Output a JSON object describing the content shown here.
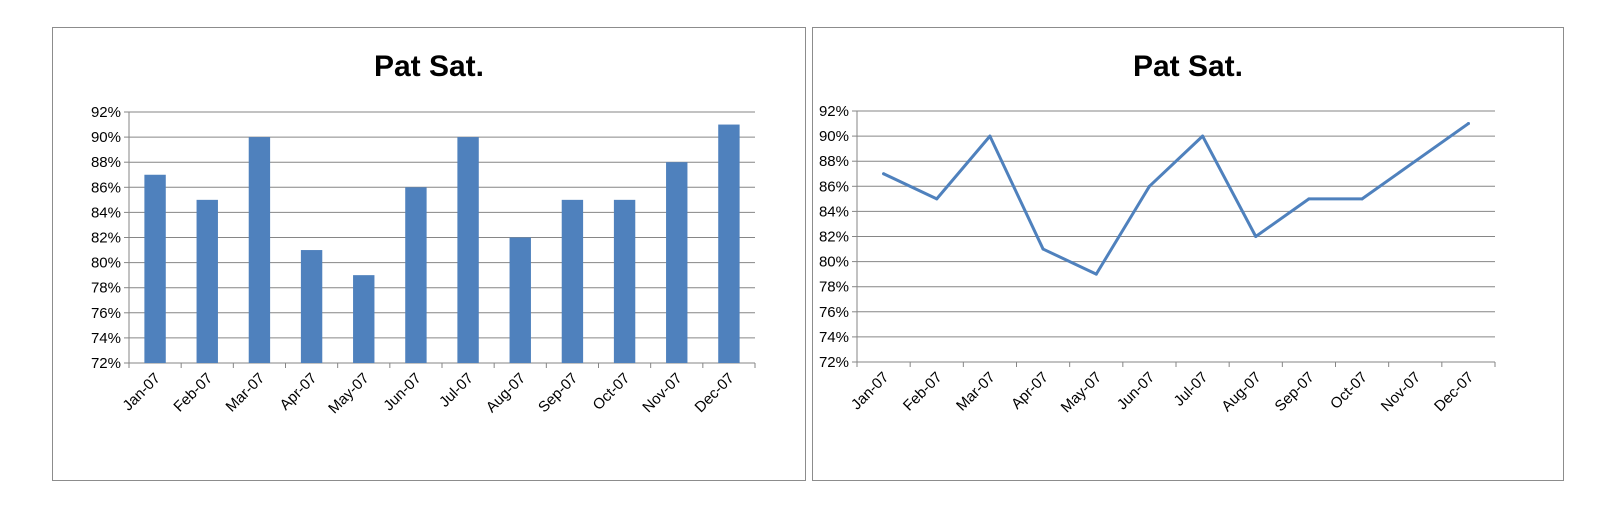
{
  "chart_data": [
    {
      "type": "bar",
      "title": "Pat Sat.",
      "categories": [
        "Jan-07",
        "Feb-07",
        "Mar-07",
        "Apr-07",
        "May-07",
        "Jun-07",
        "Jul-07",
        "Aug-07",
        "Sep-07",
        "Oct-07",
        "Nov-07",
        "Dec-07"
      ],
      "values": [
        87,
        85,
        90,
        81,
        79,
        86,
        90,
        82,
        85,
        85,
        88,
        91
      ],
      "ylim": [
        72,
        92
      ],
      "ytick_step": 2,
      "yticks": [
        "72%",
        "74%",
        "76%",
        "78%",
        "80%",
        "82%",
        "84%",
        "86%",
        "88%",
        "90%",
        "92%"
      ],
      "grid": true,
      "color": "#4f81bd"
    },
    {
      "type": "line",
      "title": "Pat Sat.",
      "categories": [
        "Jan-07",
        "Feb-07",
        "Mar-07",
        "Apr-07",
        "May-07",
        "Jun-07",
        "Jul-07",
        "Aug-07",
        "Sep-07",
        "Oct-07",
        "Nov-07",
        "Dec-07"
      ],
      "values": [
        87,
        85,
        90,
        81,
        79,
        86,
        90,
        82,
        85,
        85,
        88,
        91
      ],
      "ylim": [
        72,
        92
      ],
      "ytick_step": 2,
      "yticks": [
        "72%",
        "74%",
        "76%",
        "78%",
        "80%",
        "82%",
        "84%",
        "86%",
        "88%",
        "90%",
        "92%"
      ],
      "grid": true,
      "color": "#4f81bd"
    }
  ]
}
